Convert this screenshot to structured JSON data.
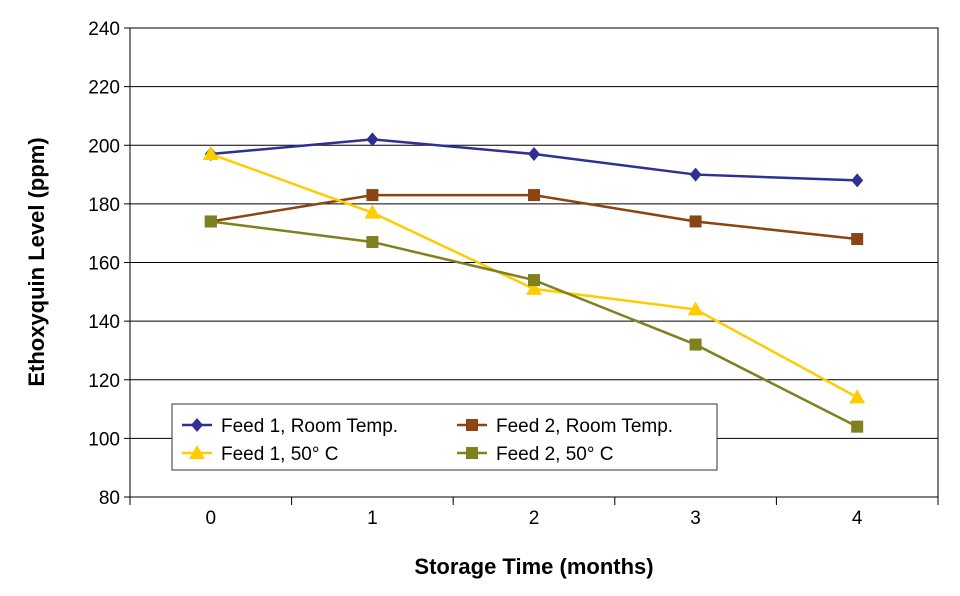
{
  "chart_data": {
    "type": "line",
    "title": "",
    "xlabel": "Storage Time (months)",
    "ylabel": "Ethoxyquin Level (ppm)",
    "categories": [
      "0",
      "1",
      "2",
      "3",
      "4"
    ],
    "ylim": [
      80,
      240
    ],
    "yticks": [
      "80",
      "100",
      "120",
      "140",
      "160",
      "180",
      "200",
      "220",
      "240"
    ],
    "grid": "horizontal",
    "legend_position": "bottom-left inside",
    "series": [
      {
        "name": "Feed 1, Room Temp.",
        "values": [
          197,
          202,
          197,
          190,
          188
        ],
        "color": "#2E3192",
        "marker": "diamond"
      },
      {
        "name": "Feed 2, Room Temp.",
        "values": [
          174,
          183,
          183,
          174,
          168
        ],
        "color": "#8B4513",
        "marker": "square"
      },
      {
        "name": "Feed 1, 50° C",
        "values": [
          197,
          177,
          151,
          144,
          114
        ],
        "color": "#FFCC00",
        "marker": "triangle"
      },
      {
        "name": "Feed 2, 50° C",
        "values": [
          174,
          167,
          154,
          132,
          104
        ],
        "color": "#808020",
        "marker": "square"
      }
    ]
  }
}
